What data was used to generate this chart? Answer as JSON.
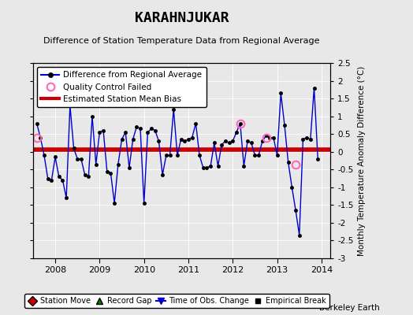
{
  "title": "KARAHNJUKAR",
  "subtitle": "Difference of Station Temperature Data from Regional Average",
  "ylabel": "Monthly Temperature Anomaly Difference (°C)",
  "bias": 0.05,
  "xlim": [
    2007.5,
    2014.2
  ],
  "ylim": [
    -3.0,
    2.5
  ],
  "yticks": [
    -3,
    -2.5,
    -2,
    -1.5,
    -1,
    -0.5,
    0,
    0.5,
    1,
    1.5,
    2,
    2.5
  ],
  "ytick_labels": [
    "-3",
    "-2.5",
    "-2",
    "-1.5",
    "-1",
    "-0.5",
    "0",
    "0.5",
    "1",
    "1.5",
    "2",
    "2.5"
  ],
  "xticks": [
    2008,
    2009,
    2010,
    2011,
    2012,
    2013,
    2014
  ],
  "background_color": "#e8e8e8",
  "plot_bg_color": "#e8e8e8",
  "line_color": "#0000cc",
  "bias_color": "#cc0000",
  "qc_color": "#ff69b4",
  "watermark": "Berkeley Earth",
  "time_series": [
    [
      2007.583,
      0.8
    ],
    [
      2007.667,
      0.4
    ],
    [
      2007.75,
      -0.1
    ],
    [
      2007.833,
      -0.75
    ],
    [
      2007.917,
      -0.8
    ],
    [
      2008.0,
      -0.15
    ],
    [
      2008.083,
      -0.7
    ],
    [
      2008.167,
      -0.8
    ],
    [
      2008.25,
      -1.3
    ],
    [
      2008.333,
      1.3
    ],
    [
      2008.417,
      0.1
    ],
    [
      2008.5,
      -0.2
    ],
    [
      2008.583,
      -0.2
    ],
    [
      2008.667,
      -0.65
    ],
    [
      2008.75,
      -0.7
    ],
    [
      2008.833,
      1.0
    ],
    [
      2008.917,
      -0.35
    ],
    [
      2009.0,
      0.55
    ],
    [
      2009.083,
      0.6
    ],
    [
      2009.167,
      -0.55
    ],
    [
      2009.25,
      -0.6
    ],
    [
      2009.333,
      -1.45
    ],
    [
      2009.417,
      -0.35
    ],
    [
      2009.5,
      0.35
    ],
    [
      2009.583,
      0.55
    ],
    [
      2009.667,
      -0.45
    ],
    [
      2009.75,
      0.35
    ],
    [
      2009.833,
      0.7
    ],
    [
      2009.917,
      0.65
    ],
    [
      2010.0,
      -1.45
    ],
    [
      2010.083,
      0.55
    ],
    [
      2010.167,
      0.65
    ],
    [
      2010.25,
      0.6
    ],
    [
      2010.333,
      0.3
    ],
    [
      2010.417,
      -0.65
    ],
    [
      2010.5,
      -0.1
    ],
    [
      2010.583,
      -0.1
    ],
    [
      2010.667,
      1.2
    ],
    [
      2010.75,
      -0.1
    ],
    [
      2010.833,
      0.35
    ],
    [
      2010.917,
      0.3
    ],
    [
      2011.0,
      0.35
    ],
    [
      2011.083,
      0.4
    ],
    [
      2011.167,
      0.8
    ],
    [
      2011.25,
      -0.1
    ],
    [
      2011.333,
      -0.45
    ],
    [
      2011.417,
      -0.45
    ],
    [
      2011.5,
      -0.4
    ],
    [
      2011.583,
      0.25
    ],
    [
      2011.667,
      -0.4
    ],
    [
      2011.75,
      0.2
    ],
    [
      2011.833,
      0.3
    ],
    [
      2011.917,
      0.25
    ],
    [
      2012.0,
      0.3
    ],
    [
      2012.083,
      0.55
    ],
    [
      2012.167,
      0.8
    ],
    [
      2012.25,
      -0.4
    ],
    [
      2012.333,
      0.3
    ],
    [
      2012.417,
      0.25
    ],
    [
      2012.5,
      -0.1
    ],
    [
      2012.583,
      -0.1
    ],
    [
      2012.667,
      0.3
    ],
    [
      2012.75,
      0.45
    ],
    [
      2012.833,
      0.4
    ],
    [
      2012.917,
      0.4
    ],
    [
      2013.0,
      -0.1
    ],
    [
      2013.083,
      1.65
    ],
    [
      2013.167,
      0.75
    ],
    [
      2013.25,
      -0.3
    ],
    [
      2013.333,
      -1.0
    ],
    [
      2013.417,
      -1.65
    ],
    [
      2013.5,
      -2.35
    ],
    [
      2013.583,
      0.35
    ],
    [
      2013.667,
      0.4
    ],
    [
      2013.75,
      0.35
    ],
    [
      2013.833,
      1.8
    ],
    [
      2013.917,
      -0.2
    ]
  ],
  "qc_failed": [
    [
      2007.583,
      0.4
    ],
    [
      2012.167,
      0.8
    ],
    [
      2012.75,
      0.4
    ],
    [
      2013.417,
      -0.35
    ]
  ]
}
